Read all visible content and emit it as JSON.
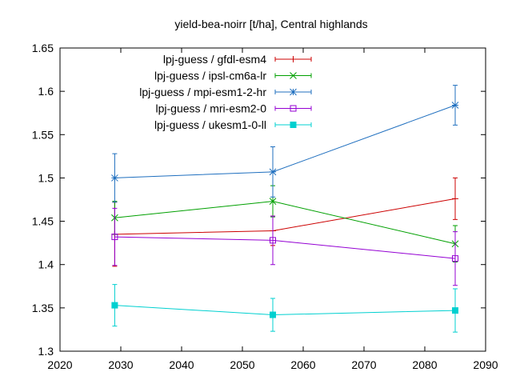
{
  "chart_data": {
    "type": "line",
    "title": "yield-bea-noirr [t/ha], Central highlands",
    "xlabel": "",
    "ylabel": "",
    "xlim": [
      2020,
      2090
    ],
    "ylim": [
      1.3,
      1.65
    ],
    "xticks": [
      2020,
      2030,
      2040,
      2050,
      2060,
      2070,
      2080,
      2090
    ],
    "yticks": [
      1.3,
      1.35,
      1.4,
      1.45,
      1.5,
      1.55,
      1.6,
      1.65
    ],
    "xtick_labels": [
      "2020",
      "2030",
      "2040",
      "2050",
      "2060",
      "2070",
      "2080",
      "2090"
    ],
    "ytick_labels": [
      "1.3",
      "1.35",
      "1.4",
      "1.45",
      "1.5",
      "1.55",
      "1.6",
      "1.65"
    ],
    "grid": false,
    "legend_position": "top-right",
    "x": [
      2029,
      2055,
      2085
    ],
    "series": [
      {
        "name": "lpj-guess / gfdl-esm4",
        "color": "#cc0000",
        "marker": "plus",
        "values": [
          1.435,
          1.439,
          1.476
        ],
        "err": [
          0.037,
          0.017,
          0.024
        ]
      },
      {
        "name": "lpj-guess / ipsl-cm6a-lr",
        "color": "#00a000",
        "marker": "cross",
        "values": [
          1.454,
          1.473,
          1.424
        ],
        "err": [
          0.019,
          0.018,
          0.021
        ]
      },
      {
        "name": "lpj-guess / mpi-esm1-2-hr",
        "color": "#1f6fbf",
        "marker": "star",
        "values": [
          1.5,
          1.507,
          1.584
        ],
        "err": [
          0.028,
          0.029,
          0.023
        ]
      },
      {
        "name": "lpj-guess / mri-esm2-0",
        "color": "#9400d3",
        "marker": "box",
        "values": [
          1.432,
          1.428,
          1.407
        ],
        "err": [
          0.033,
          0.028,
          0.031
        ]
      },
      {
        "name": "lpj-guess / ukesm1-0-ll",
        "color": "#00d0d0",
        "marker": "filled-box",
        "values": [
          1.353,
          1.342,
          1.347
        ],
        "err": [
          0.024,
          0.019,
          0.025
        ]
      }
    ]
  }
}
